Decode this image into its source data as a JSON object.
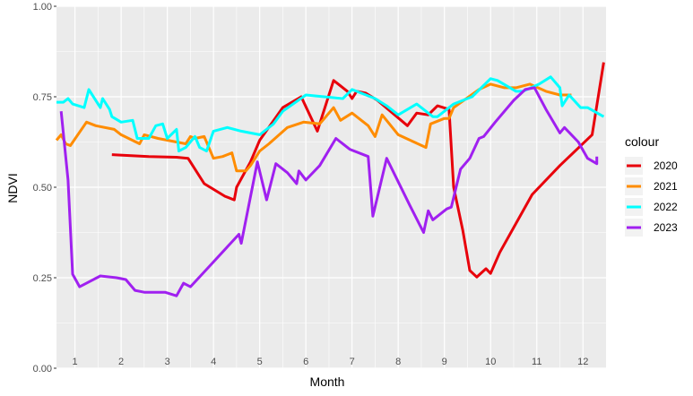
{
  "chart_data": {
    "type": "line",
    "title": "",
    "xlabel": "Month",
    "ylabel": "NDVI",
    "xlim": [
      0.6,
      12.5
    ],
    "ylim": [
      0,
      1
    ],
    "y_ticks": [
      "0.00",
      "0.25",
      "0.50",
      "0.75",
      "1.00"
    ],
    "y_tick_values": [
      0,
      0.25,
      0.5,
      0.75,
      1
    ],
    "x_ticks": [
      "1",
      "2",
      "3",
      "4",
      "5",
      "6",
      "7",
      "8",
      "9",
      "10",
      "11",
      "12"
    ],
    "x_tick_values": [
      1,
      2,
      3,
      4,
      5,
      6,
      7,
      8,
      9,
      10,
      11,
      12
    ],
    "grid": true,
    "legend": {
      "title": "colour",
      "position": "right"
    },
    "series": [
      {
        "name": "2020",
        "color": "#E8000B",
        "points": [
          [
            1.8,
            0.59
          ],
          [
            2.6,
            0.585
          ],
          [
            3.2,
            0.583
          ],
          [
            3.45,
            0.58
          ],
          [
            3.8,
            0.51
          ],
          [
            4.25,
            0.475
          ],
          [
            4.45,
            0.465
          ],
          [
            4.5,
            0.5
          ],
          [
            4.8,
            0.57
          ],
          [
            5.0,
            0.63
          ],
          [
            5.5,
            0.72
          ],
          [
            5.9,
            0.75
          ],
          [
            6.25,
            0.655
          ],
          [
            6.6,
            0.795
          ],
          [
            6.9,
            0.765
          ],
          [
            7.0,
            0.745
          ],
          [
            7.1,
            0.765
          ],
          [
            7.3,
            0.76
          ],
          [
            7.55,
            0.74
          ],
          [
            8.2,
            0.67
          ],
          [
            8.4,
            0.705
          ],
          [
            8.65,
            0.7
          ],
          [
            8.85,
            0.725
          ],
          [
            9.1,
            0.715
          ],
          [
            9.2,
            0.5
          ],
          [
            9.4,
            0.38
          ],
          [
            9.55,
            0.27
          ],
          [
            9.7,
            0.252
          ],
          [
            9.9,
            0.275
          ],
          [
            10.0,
            0.262
          ],
          [
            10.2,
            0.32
          ],
          [
            10.9,
            0.48
          ],
          [
            11.5,
            0.56
          ],
          [
            12.2,
            0.645
          ],
          [
            12.45,
            0.845
          ]
        ]
      },
      {
        "name": "2021",
        "color": "#FF8C00",
        "points": [
          [
            0.6,
            0.63
          ],
          [
            0.7,
            0.645
          ],
          [
            0.8,
            0.62
          ],
          [
            0.9,
            0.615
          ],
          [
            1.25,
            0.68
          ],
          [
            1.45,
            0.67
          ],
          [
            1.85,
            0.66
          ],
          [
            2.0,
            0.645
          ],
          [
            2.4,
            0.62
          ],
          [
            2.5,
            0.645
          ],
          [
            2.8,
            0.635
          ],
          [
            3.0,
            0.63
          ],
          [
            3.2,
            0.625
          ],
          [
            3.4,
            0.62
          ],
          [
            3.5,
            0.64
          ],
          [
            3.6,
            0.635
          ],
          [
            3.8,
            0.64
          ],
          [
            4.0,
            0.58
          ],
          [
            4.2,
            0.585
          ],
          [
            4.4,
            0.595
          ],
          [
            4.5,
            0.545
          ],
          [
            4.6,
            0.545
          ],
          [
            4.7,
            0.545
          ],
          [
            4.8,
            0.56
          ],
          [
            5.0,
            0.6
          ],
          [
            5.2,
            0.62
          ],
          [
            5.6,
            0.665
          ],
          [
            5.95,
            0.68
          ],
          [
            6.3,
            0.675
          ],
          [
            6.6,
            0.72
          ],
          [
            6.75,
            0.685
          ],
          [
            7.0,
            0.705
          ],
          [
            7.35,
            0.67
          ],
          [
            7.5,
            0.64
          ],
          [
            7.65,
            0.7
          ],
          [
            8.0,
            0.645
          ],
          [
            8.6,
            0.61
          ],
          [
            8.7,
            0.675
          ],
          [
            9.0,
            0.69
          ],
          [
            9.1,
            0.69
          ],
          [
            9.2,
            0.72
          ],
          [
            9.75,
            0.77
          ],
          [
            10.0,
            0.785
          ],
          [
            10.3,
            0.775
          ],
          [
            10.55,
            0.775
          ],
          [
            10.85,
            0.785
          ],
          [
            11.2,
            0.765
          ],
          [
            11.5,
            0.755
          ],
          [
            11.75,
            0.755
          ]
        ]
      },
      {
        "name": "2022",
        "color": "#00FFFF",
        "points": [
          [
            0.6,
            0.735
          ],
          [
            0.75,
            0.735
          ],
          [
            0.85,
            0.745
          ],
          [
            0.95,
            0.73
          ],
          [
            1.2,
            0.72
          ],
          [
            1.3,
            0.77
          ],
          [
            1.55,
            0.72
          ],
          [
            1.6,
            0.745
          ],
          [
            1.75,
            0.715
          ],
          [
            1.8,
            0.695
          ],
          [
            2.0,
            0.68
          ],
          [
            2.25,
            0.685
          ],
          [
            2.35,
            0.635
          ],
          [
            2.6,
            0.635
          ],
          [
            2.75,
            0.67
          ],
          [
            2.9,
            0.675
          ],
          [
            3.0,
            0.635
          ],
          [
            3.2,
            0.66
          ],
          [
            3.25,
            0.6
          ],
          [
            3.4,
            0.61
          ],
          [
            3.6,
            0.64
          ],
          [
            3.7,
            0.61
          ],
          [
            3.85,
            0.6
          ],
          [
            4.0,
            0.655
          ],
          [
            4.3,
            0.665
          ],
          [
            4.6,
            0.655
          ],
          [
            5.0,
            0.645
          ],
          [
            5.3,
            0.675
          ],
          [
            5.5,
            0.71
          ],
          [
            6.0,
            0.755
          ],
          [
            6.8,
            0.745
          ],
          [
            7.0,
            0.77
          ],
          [
            7.5,
            0.745
          ],
          [
            7.75,
            0.725
          ],
          [
            8.0,
            0.7
          ],
          [
            8.4,
            0.73
          ],
          [
            8.75,
            0.695
          ],
          [
            8.85,
            0.695
          ],
          [
            9.2,
            0.73
          ],
          [
            9.6,
            0.75
          ],
          [
            10.0,
            0.8
          ],
          [
            10.15,
            0.795
          ],
          [
            10.55,
            0.765
          ],
          [
            10.7,
            0.765
          ],
          [
            11.05,
            0.785
          ],
          [
            11.3,
            0.805
          ],
          [
            11.5,
            0.775
          ],
          [
            11.55,
            0.725
          ],
          [
            11.7,
            0.755
          ],
          [
            11.95,
            0.72
          ],
          [
            12.1,
            0.72
          ],
          [
            12.45,
            0.695
          ]
        ]
      },
      {
        "name": "2023",
        "color": "#A020F0",
        "points": [
          [
            0.7,
            0.71
          ],
          [
            0.85,
            0.52
          ],
          [
            0.95,
            0.26
          ],
          [
            1.1,
            0.225
          ],
          [
            1.25,
            0.235
          ],
          [
            1.55,
            0.255
          ],
          [
            1.9,
            0.25
          ],
          [
            2.1,
            0.245
          ],
          [
            2.3,
            0.215
          ],
          [
            2.5,
            0.21
          ],
          [
            2.95,
            0.21
          ],
          [
            3.2,
            0.2
          ],
          [
            3.35,
            0.235
          ],
          [
            3.5,
            0.225
          ],
          [
            3.9,
            0.28
          ],
          [
            4.55,
            0.37
          ],
          [
            4.6,
            0.345
          ],
          [
            4.95,
            0.57
          ],
          [
            5.15,
            0.465
          ],
          [
            5.35,
            0.565
          ],
          [
            5.6,
            0.54
          ],
          [
            5.8,
            0.51
          ],
          [
            5.85,
            0.545
          ],
          [
            6.0,
            0.52
          ],
          [
            6.3,
            0.56
          ],
          [
            6.65,
            0.635
          ],
          [
            6.95,
            0.605
          ],
          [
            7.35,
            0.585
          ],
          [
            7.45,
            0.42
          ],
          [
            7.75,
            0.58
          ],
          [
            8.25,
            0.45
          ],
          [
            8.55,
            0.375
          ],
          [
            8.65,
            0.435
          ],
          [
            8.75,
            0.41
          ],
          [
            9.05,
            0.44
          ],
          [
            9.15,
            0.445
          ],
          [
            9.35,
            0.55
          ],
          [
            9.55,
            0.58
          ],
          [
            9.75,
            0.635
          ],
          [
            9.85,
            0.64
          ],
          [
            10.1,
            0.68
          ],
          [
            10.5,
            0.74
          ],
          [
            10.75,
            0.77
          ],
          [
            10.95,
            0.775
          ],
          [
            11.2,
            0.715
          ],
          [
            11.5,
            0.65
          ],
          [
            11.6,
            0.665
          ],
          [
            11.9,
            0.625
          ],
          [
            12.1,
            0.58
          ],
          [
            12.3,
            0.565
          ],
          [
            12.3,
            0.585
          ]
        ]
      }
    ]
  }
}
